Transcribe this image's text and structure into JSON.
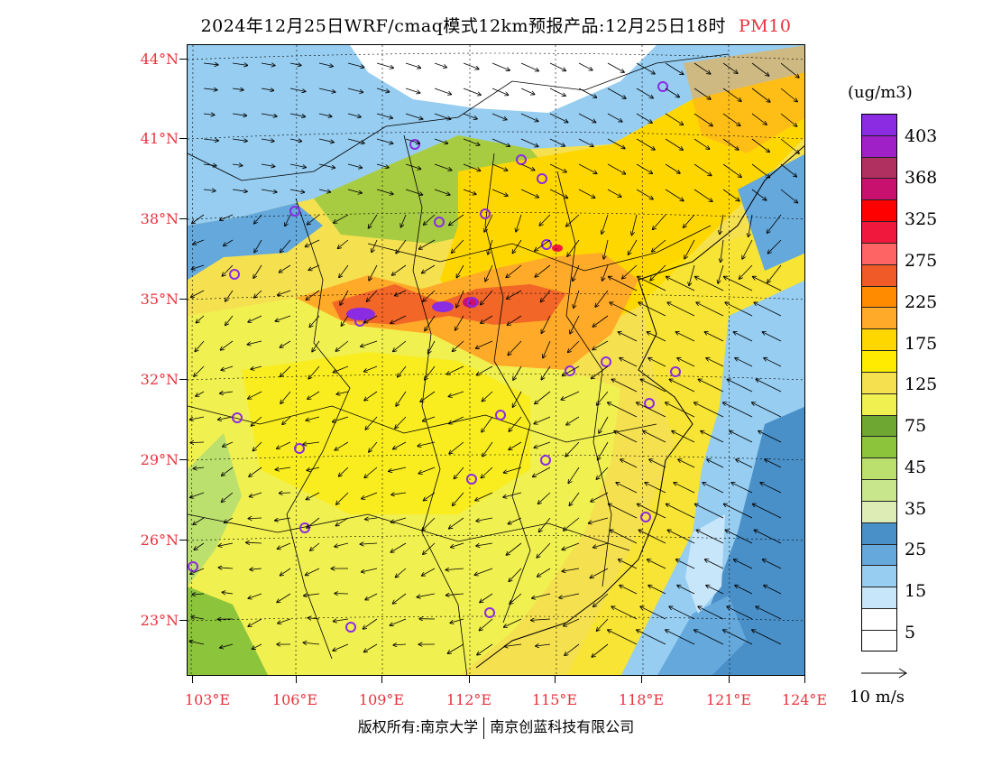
{
  "title": {
    "main": "2024年12月25日WRF/cmaq模式12km预报产品:12月25日18时",
    "species": "PM10"
  },
  "axes": {
    "lat_labels": [
      "44°N",
      "41°N",
      "38°N",
      "35°N",
      "32°N",
      "29°N",
      "26°N",
      "23°N"
    ],
    "lon_labels": [
      "103°E",
      "106°E",
      "109°E",
      "112°E",
      "115°E",
      "118°E",
      "121°E",
      "124°E"
    ]
  },
  "colorbar": {
    "unit": "(ug/m3)",
    "labels": [
      "403",
      "368",
      "325",
      "275",
      "225",
      "175",
      "125",
      "75",
      "45",
      "35",
      "25",
      "15",
      "5"
    ],
    "colors": [
      "#8b2be2",
      "#a020c8",
      "#b03060",
      "#c8106e",
      "#ff0000",
      "#f0183c",
      "#ff6464",
      "#f05a28",
      "#ff8c00",
      "#ffaa28",
      "#ffd700",
      "#ffeb00",
      "#f5e050",
      "#f0f050",
      "#6ea832",
      "#8cc43c",
      "#bce06e",
      "#c8e68c",
      "#dcecb4",
      "#4a90c8",
      "#64a8dc",
      "#96cdf0",
      "#c8e6fa",
      "#ffffff"
    ]
  },
  "wind": {
    "reference_label": "10 m/s"
  },
  "footer": {
    "left": "版权所有:南京大学",
    "right": "南京创蓝科技有限公司"
  }
}
